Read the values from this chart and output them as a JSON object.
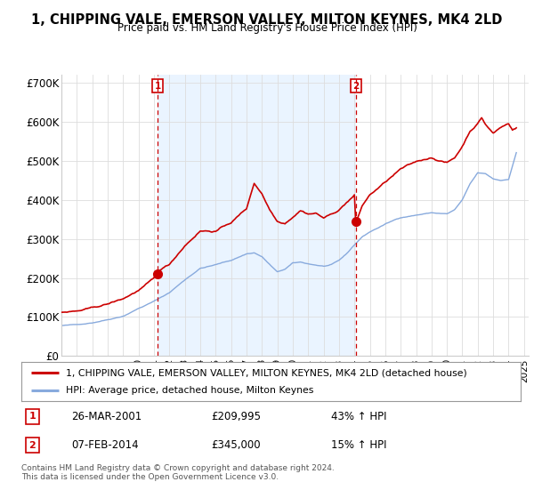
{
  "title": "1, CHIPPING VALE, EMERSON VALLEY, MILTON KEYNES, MK4 2LD",
  "subtitle": "Price paid vs. HM Land Registry's House Price Index (HPI)",
  "background_color": "#ffffff",
  "grid_color": "#dddddd",
  "ylim": [
    0,
    720000
  ],
  "yticks": [
    0,
    100000,
    200000,
    300000,
    400000,
    500000,
    600000,
    700000
  ],
  "ytick_labels": [
    "£0",
    "£100K",
    "£200K",
    "£300K",
    "£400K",
    "£500K",
    "£600K",
    "£700K"
  ],
  "sale1_date": "26-MAR-2001",
  "sale1_price": 209995,
  "sale1_hpi_pct": "43%",
  "sale2_date": "07-FEB-2014",
  "sale2_price": 345000,
  "sale2_hpi_pct": "15%",
  "line1_color": "#cc0000",
  "line2_color": "#88aadd",
  "vline_color": "#cc0000",
  "marker_color": "#cc0000",
  "shade_color": "#ddeeff",
  "legend_label1": "1, CHIPPING VALE, EMERSON VALLEY, MILTON KEYNES, MK4 2LD (detached house)",
  "legend_label2": "HPI: Average price, detached house, Milton Keynes",
  "footnote": "Contains HM Land Registry data © Crown copyright and database right 2024.\nThis data is licensed under the Open Government Licence v3.0.",
  "sale1_x": 2001.23,
  "sale2_x": 2014.09
}
